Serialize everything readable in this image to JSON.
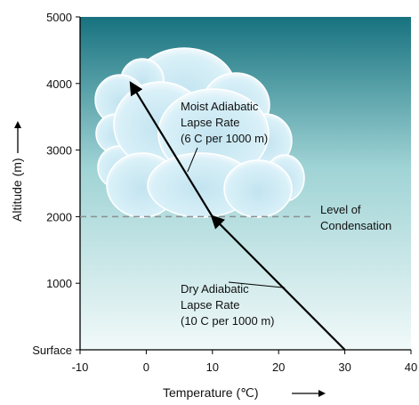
{
  "chart_data": {
    "type": "line",
    "xlabel": "Temperature (℃)",
    "ylabel": "Altitude (m)",
    "xlim": [
      -10,
      40
    ],
    "ylim": [
      0,
      5000
    ],
    "x_ticks": [
      "-10",
      "0",
      "10",
      "20",
      "30",
      "40"
    ],
    "y_ticks": [
      "Surface",
      "1000",
      "2000",
      "3000",
      "4000",
      "5000"
    ],
    "grid": false,
    "series": [
      {
        "name": "",
        "x": [
          30,
          10
        ],
        "y": [
          0,
          2000
        ]
      },
      {
        "name": "",
        "x": [
          10,
          -2.3
        ],
        "y": [
          2000,
          4000
        ]
      }
    ],
    "condensation_level": 2000,
    "annotations": {
      "moist": [
        "Moist Adiabatic",
        "Lapse Rate",
        "(6  C per 1000 m)"
      ],
      "dry": [
        "Dry Adiabatic",
        "Lapse Rate",
        "(10 C  per 1000 m)"
      ],
      "condensation": [
        "Level of",
        "Condensation"
      ]
    },
    "colors": {
      "sky_top": "#17727f",
      "sky_mid": "#9fd3d5",
      "sky_bottom": "#f1f9f9",
      "cloud": "#d5eef6",
      "cloud_edge": "#ffffff",
      "line": "#000000",
      "dashed": "#8a8f92"
    }
  }
}
